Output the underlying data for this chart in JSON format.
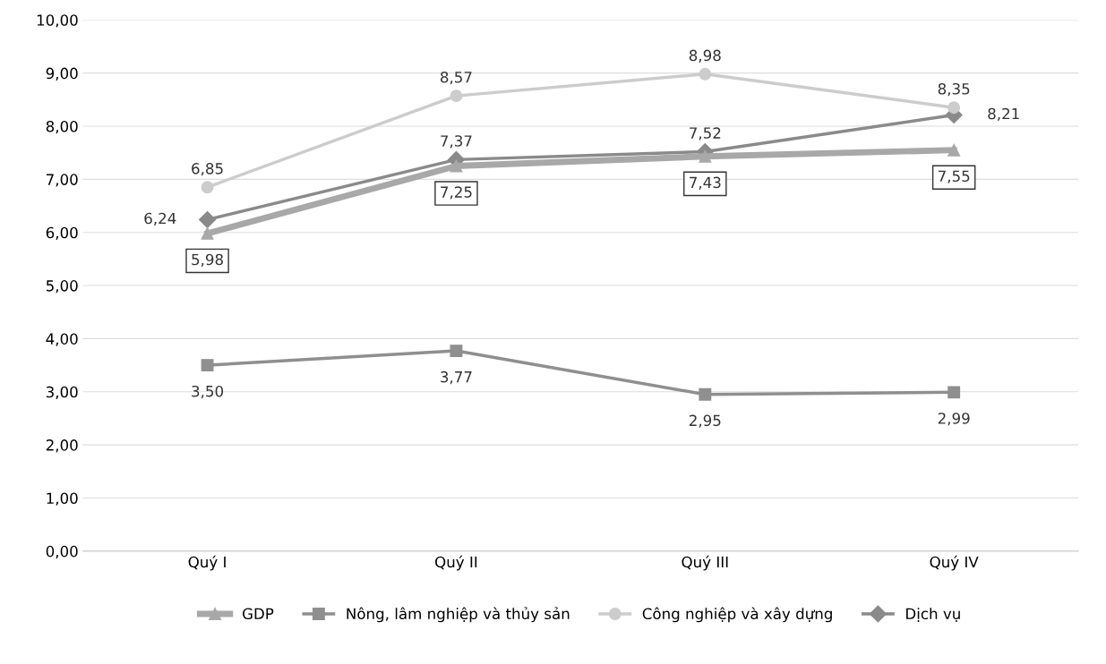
{
  "chart_data": {
    "type": "line",
    "categories": [
      "Quý I",
      "Quý II",
      "Quý III",
      "Quý IV"
    ],
    "series": [
      {
        "name": "GDP",
        "color": "#a8a8a8",
        "marker": "triangle",
        "values": [
          5.98,
          7.25,
          7.43,
          7.55
        ],
        "value_labels": [
          "5,98",
          "7,25",
          "7,43",
          "7,55"
        ]
      },
      {
        "name": "Nông, lâm nghiệp và thủy sản",
        "color": "#8f8f8f",
        "marker": "square",
        "values": [
          3.5,
          3.77,
          2.95,
          2.99
        ],
        "value_labels": [
          "3,50",
          "3,77",
          "2,95",
          "2,99"
        ]
      },
      {
        "name": "Công nghiệp và xây dựng",
        "color": "#cccccc",
        "marker": "circle",
        "values": [
          6.85,
          8.57,
          8.98,
          8.35
        ],
        "value_labels": [
          "6,85",
          "8,57",
          "8,98",
          "8,35"
        ]
      },
      {
        "name": "Dịch vụ",
        "color": "#8a8a8a",
        "marker": "diamond",
        "values": [
          6.24,
          7.37,
          7.52,
          8.21
        ],
        "value_labels": [
          "6,24",
          "7,37",
          "7,52",
          "8,21"
        ]
      }
    ],
    "ylim": [
      0,
      10
    ],
    "yticks": [
      {
        "value": 0,
        "label": "0,00"
      },
      {
        "value": 1,
        "label": "1,00"
      },
      {
        "value": 2,
        "label": "2,00"
      },
      {
        "value": 3,
        "label": "3,00"
      },
      {
        "value": 4,
        "label": "4,00"
      },
      {
        "value": 5,
        "label": "5,00"
      },
      {
        "value": 6,
        "label": "6,00"
      },
      {
        "value": 7,
        "label": "7,00"
      },
      {
        "value": 8,
        "label": "8,00"
      },
      {
        "value": 9,
        "label": "9,00"
      },
      {
        "value": 10,
        "label": "10,00"
      }
    ],
    "grid": "y",
    "legend": "bottom",
    "line_style": "solid"
  }
}
